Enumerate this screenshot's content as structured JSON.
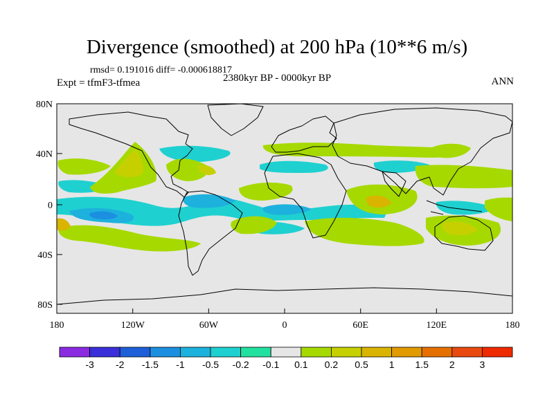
{
  "title": "Divergence (smoothed) at 200 hPa (10**6 m/s)",
  "stats": "rmsd= 0.191016 diff= -0.000618817",
  "experiment": "Expt = tfmF3-tfmea",
  "period": "2380kyr BP - 0000kyr BP",
  "season": "ANN",
  "lat_ticks": [
    "80N",
    "40N",
    "0",
    "40S",
    "80S"
  ],
  "lon_ticks": [
    "180",
    "120W",
    "60W",
    "0",
    "60E",
    "120E",
    "180"
  ],
  "colorbar": {
    "labels": [
      "-3",
      "-2",
      "-1.5",
      "-1",
      "-0.5",
      "-0.2",
      "-0.1",
      "0.1",
      "0.2",
      "0.5",
      "1",
      "1.5",
      "2",
      "3"
    ],
    "colors": [
      "#8A2BE2",
      "#3A2FD9",
      "#1E5FD8",
      "#1C8FE0",
      "#1DB1DD",
      "#1FD0D0",
      "#22E0A0",
      "#E6E6E6",
      "#A6D900",
      "#C6D000",
      "#D9B400",
      "#E19A00",
      "#E57000",
      "#E84A10",
      "#EE2A00"
    ]
  },
  "map_colors": {
    "background": "#E6E6E6",
    "neg_light": "#1FD0D0",
    "neg_mid": "#1DB1DD",
    "neg_strong": "#1C8FE0",
    "pos_light": "#A6D900",
    "pos_mid": "#C6D000",
    "pos_strong": "#D9B400",
    "pos_max": "#E19A00"
  }
}
